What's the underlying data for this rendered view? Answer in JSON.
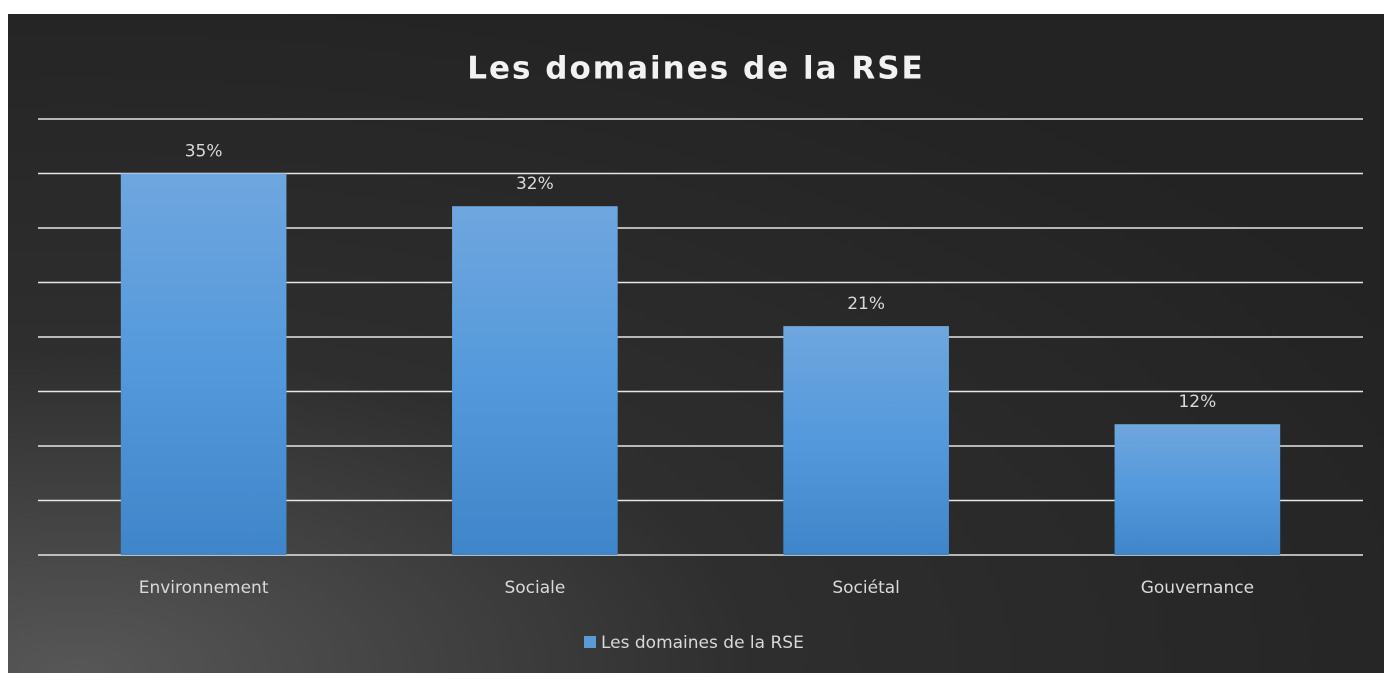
{
  "chart_data": {
    "type": "bar",
    "title": "Les domaines de la RSE",
    "categories": [
      "Environnement",
      "Sociale",
      "Sociétal",
      "Gouvernance"
    ],
    "series": [
      {
        "name": "Les domaines de la RSE",
        "color": "#5b9bd5",
        "values": [
          35,
          32,
          21,
          12
        ],
        "value_labels": [
          "35%",
          "32%",
          "21%",
          "12%"
        ]
      }
    ],
    "ylim": [
      0,
      40
    ],
    "yticks": [
      0,
      5,
      10,
      15,
      20,
      25,
      30,
      35,
      40
    ],
    "grid": true,
    "legend": "bottom"
  }
}
